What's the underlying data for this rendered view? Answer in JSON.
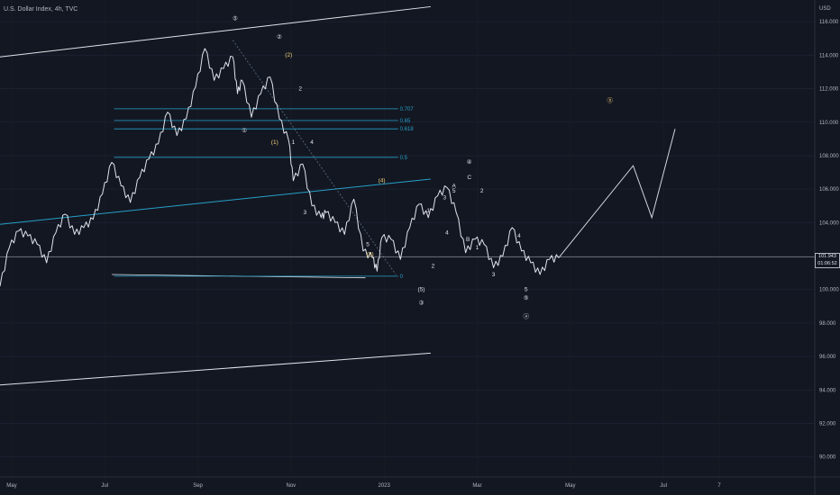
{
  "chart_data": {
    "type": "line",
    "title": "U.S. Dollar Index, 4h, TVC",
    "ylabel": "USD",
    "ylim": [
      88.8,
      117.3
    ],
    "y_ticks": [
      "116.000",
      "114.000",
      "112.000",
      "110.000",
      "108.000",
      "106.000",
      "104.000",
      "102.000",
      "100.000",
      "98.000",
      "96.000",
      "94.000",
      "92.000",
      "90.000"
    ],
    "y_tick_values": [
      116,
      114,
      112,
      110,
      108,
      106,
      104,
      102,
      100,
      98,
      96,
      94,
      92,
      90
    ],
    "x_ticks": [
      {
        "label": "May",
        "x": 0.25
      },
      {
        "label": "Jul",
        "x": 2.25
      },
      {
        "label": "Sep",
        "x": 4.25
      },
      {
        "label": "Nov",
        "x": 6.25
      },
      {
        "label": "2023",
        "x": 8.25
      },
      {
        "label": "Mar",
        "x": 10.25
      },
      {
        "label": "May",
        "x": 12.25
      },
      {
        "label": "Jul",
        "x": 14.25
      },
      {
        "label": "7",
        "x": 15.45
      }
    ],
    "xlim": [
      0,
      17.5
    ],
    "current_price": {
      "value": 101.943,
      "label": "101.943",
      "countdown": "01:06:52"
    },
    "series": [
      {
        "x": [
          0,
          0.2,
          0.4,
          0.6,
          0.8,
          1.0,
          1.2,
          1.4,
          1.6,
          1.8,
          2.0,
          2.2,
          2.4,
          2.6,
          2.8,
          3.0,
          3.2,
          3.4,
          3.6,
          3.8,
          4.0,
          4.2,
          4.4,
          4.6,
          4.8,
          5.0,
          5.1,
          5.2,
          5.4,
          5.6,
          5.8,
          6.0,
          6.2,
          6.3,
          6.5,
          6.7,
          6.9,
          7.0,
          7.2,
          7.4,
          7.6,
          7.8,
          8.0,
          8.1,
          8.2,
          8.4,
          8.6,
          8.8,
          9.0,
          9.2,
          9.4,
          9.6,
          9.8,
          10.0,
          10.2,
          10.4,
          10.6,
          10.8,
          11.0,
          11.2,
          11.4,
          11.6,
          11.8,
          12.0
        ],
        "y": [
          100.2,
          102.5,
          103.5,
          103.2,
          102.7,
          101.6,
          103.4,
          104.5,
          103.3,
          103.7,
          104.2,
          105.7,
          107.6,
          106.2,
          105.2,
          106.7,
          107.8,
          108.7,
          110.6,
          109.2,
          110.2,
          112.1,
          114.4,
          112.5,
          113.2,
          113.9,
          111.7,
          112.5,
          110.3,
          111.7,
          112.7,
          110.2,
          108.9,
          106.5,
          107.5,
          105.0,
          104.3,
          104.6,
          104.0,
          103.3,
          105.4,
          102.3,
          101.9,
          101.1,
          103.1,
          103.0,
          101.8,
          103.7,
          105.1,
          104.3,
          105.6,
          106.1,
          104.6,
          102.2,
          103.0,
          102.7,
          101.3,
          102.0,
          103.7,
          102.3,
          101.6,
          100.9,
          101.8,
          101.9
        ]
      },
      {
        "name": "projection",
        "x": [
          12.0,
          13.6,
          14.0,
          14.5
        ],
        "y": [
          101.9,
          107.4,
          104.3,
          109.6
        ]
      }
    ],
    "fib_levels": [
      {
        "label": "0.707",
        "value": 110.8
      },
      {
        "label": "0.65",
        "value": 110.1
      },
      {
        "label": "0.618",
        "value": 109.6
      },
      {
        "label": "0.5",
        "value": 107.9
      },
      {
        "label": "0",
        "value": 100.8
      }
    ],
    "annotations": [
      {
        "text": "⑤",
        "x": 5.05,
        "y": 116.1,
        "color": "#e0e3eb"
      },
      {
        "text": "②",
        "x": 6.0,
        "y": 115.0,
        "color": "#e0e3eb"
      },
      {
        "text": "(2)",
        "x": 6.2,
        "y": 113.9,
        "color": "#f2d27a"
      },
      {
        "text": "2",
        "x": 6.45,
        "y": 111.9,
        "color": "#e0e3eb"
      },
      {
        "text": "①",
        "x": 5.25,
        "y": 109.4,
        "color": "#e0e3eb"
      },
      {
        "text": "(1)",
        "x": 5.9,
        "y": 108.7,
        "color": "#f2d27a"
      },
      {
        "text": "1",
        "x": 6.3,
        "y": 108.7,
        "color": "#e0e3eb"
      },
      {
        "text": "4",
        "x": 6.7,
        "y": 108.7,
        "color": "#e0e3eb"
      },
      {
        "text": "(4)",
        "x": 8.2,
        "y": 106.4,
        "color": "#f2d27a"
      },
      {
        "text": "3",
        "x": 6.55,
        "y": 104.5,
        "color": "#e0e3eb"
      },
      {
        "text": "5",
        "x": 7.9,
        "y": 102.6,
        "color": "#e0e3eb"
      },
      {
        "text": "(3)",
        "x": 7.95,
        "y": 102.0,
        "color": "#f2d27a"
      },
      {
        "text": "2",
        "x": 9.3,
        "y": 101.3,
        "color": "#e0e3eb"
      },
      {
        "text": "(5)",
        "x": 9.05,
        "y": 99.9,
        "color": "#e0e3eb"
      },
      {
        "text": "③",
        "x": 9.05,
        "y": 99.1,
        "color": "#e0e3eb"
      },
      {
        "text": "④",
        "x": 10.08,
        "y": 107.5,
        "color": "#e0e3eb"
      },
      {
        "text": "C",
        "x": 10.08,
        "y": 106.6,
        "color": "#e0e3eb"
      },
      {
        "text": "A",
        "x": 9.75,
        "y": 106.1,
        "color": "#e0e3eb"
      },
      {
        "text": "5",
        "x": 9.75,
        "y": 105.8,
        "color": "#e0e3eb"
      },
      {
        "text": "2",
        "x": 10.35,
        "y": 105.8,
        "color": "#e0e3eb"
      },
      {
        "text": "3",
        "x": 9.55,
        "y": 105.4,
        "color": "#e0e3eb"
      },
      {
        "text": "1",
        "x": 9.2,
        "y": 104.6,
        "color": "#e0e3eb"
      },
      {
        "text": "4",
        "x": 9.6,
        "y": 103.3,
        "color": "#e0e3eb"
      },
      {
        "text": "B",
        "x": 10.05,
        "y": 102.9,
        "color": "#e0e3eb"
      },
      {
        "text": "1",
        "x": 10.25,
        "y": 102.4,
        "color": "#e0e3eb"
      },
      {
        "text": "4",
        "x": 11.15,
        "y": 103.1,
        "color": "#e0e3eb"
      },
      {
        "text": "3",
        "x": 10.6,
        "y": 100.8,
        "color": "#e0e3eb"
      },
      {
        "text": "5",
        "x": 11.3,
        "y": 99.9,
        "color": "#e0e3eb"
      },
      {
        "text": "⑤",
        "x": 11.3,
        "y": 99.4,
        "color": "#e0e3eb"
      },
      {
        "text": "ⓐ",
        "x": 11.3,
        "y": 98.3,
        "color": "#e0e3eb"
      },
      {
        "text": "ⓑ",
        "x": 13.1,
        "y": 111.2,
        "color": "#f2d27a"
      },
      {
        "text": "ⓒ",
        "x": 19.5,
        "y": 91.6,
        "color": "#f2d27a"
      }
    ]
  }
}
